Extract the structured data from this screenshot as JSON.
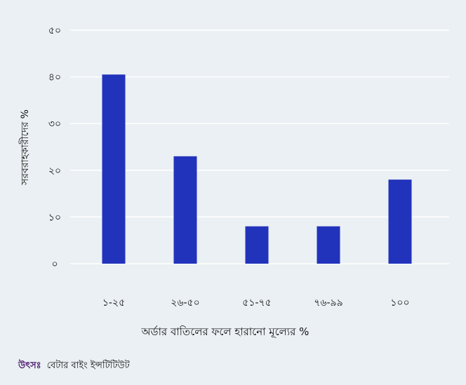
{
  "chart_data": {
    "type": "bar",
    "categories": [
      "১-২৫",
      "২৬-৫০",
      "৫১-৭৫",
      "৭৬-৯৯",
      "১০০"
    ],
    "values": [
      40.5,
      23,
      8,
      8,
      18
    ],
    "xlabel": "অর্ডার বাতিলের ফলে হারানো মূল্যের %",
    "ylabel": "সরবরাহকারীদের %",
    "ylim": [
      0,
      50
    ],
    "yticks": [
      0,
      10,
      20,
      30,
      40,
      50
    ],
    "ytick_labels": [
      "০",
      "১০",
      "২০",
      "৩০",
      "৪০",
      "৫০"
    ],
    "grid": true,
    "bar_color": "#2233bb",
    "grid_color": "#ffffff",
    "background": "#eaf0f3"
  },
  "footer": {
    "source_label": "উৎসঃ",
    "source_value": "বেটার বাইং ইন্সটিটিউট"
  }
}
